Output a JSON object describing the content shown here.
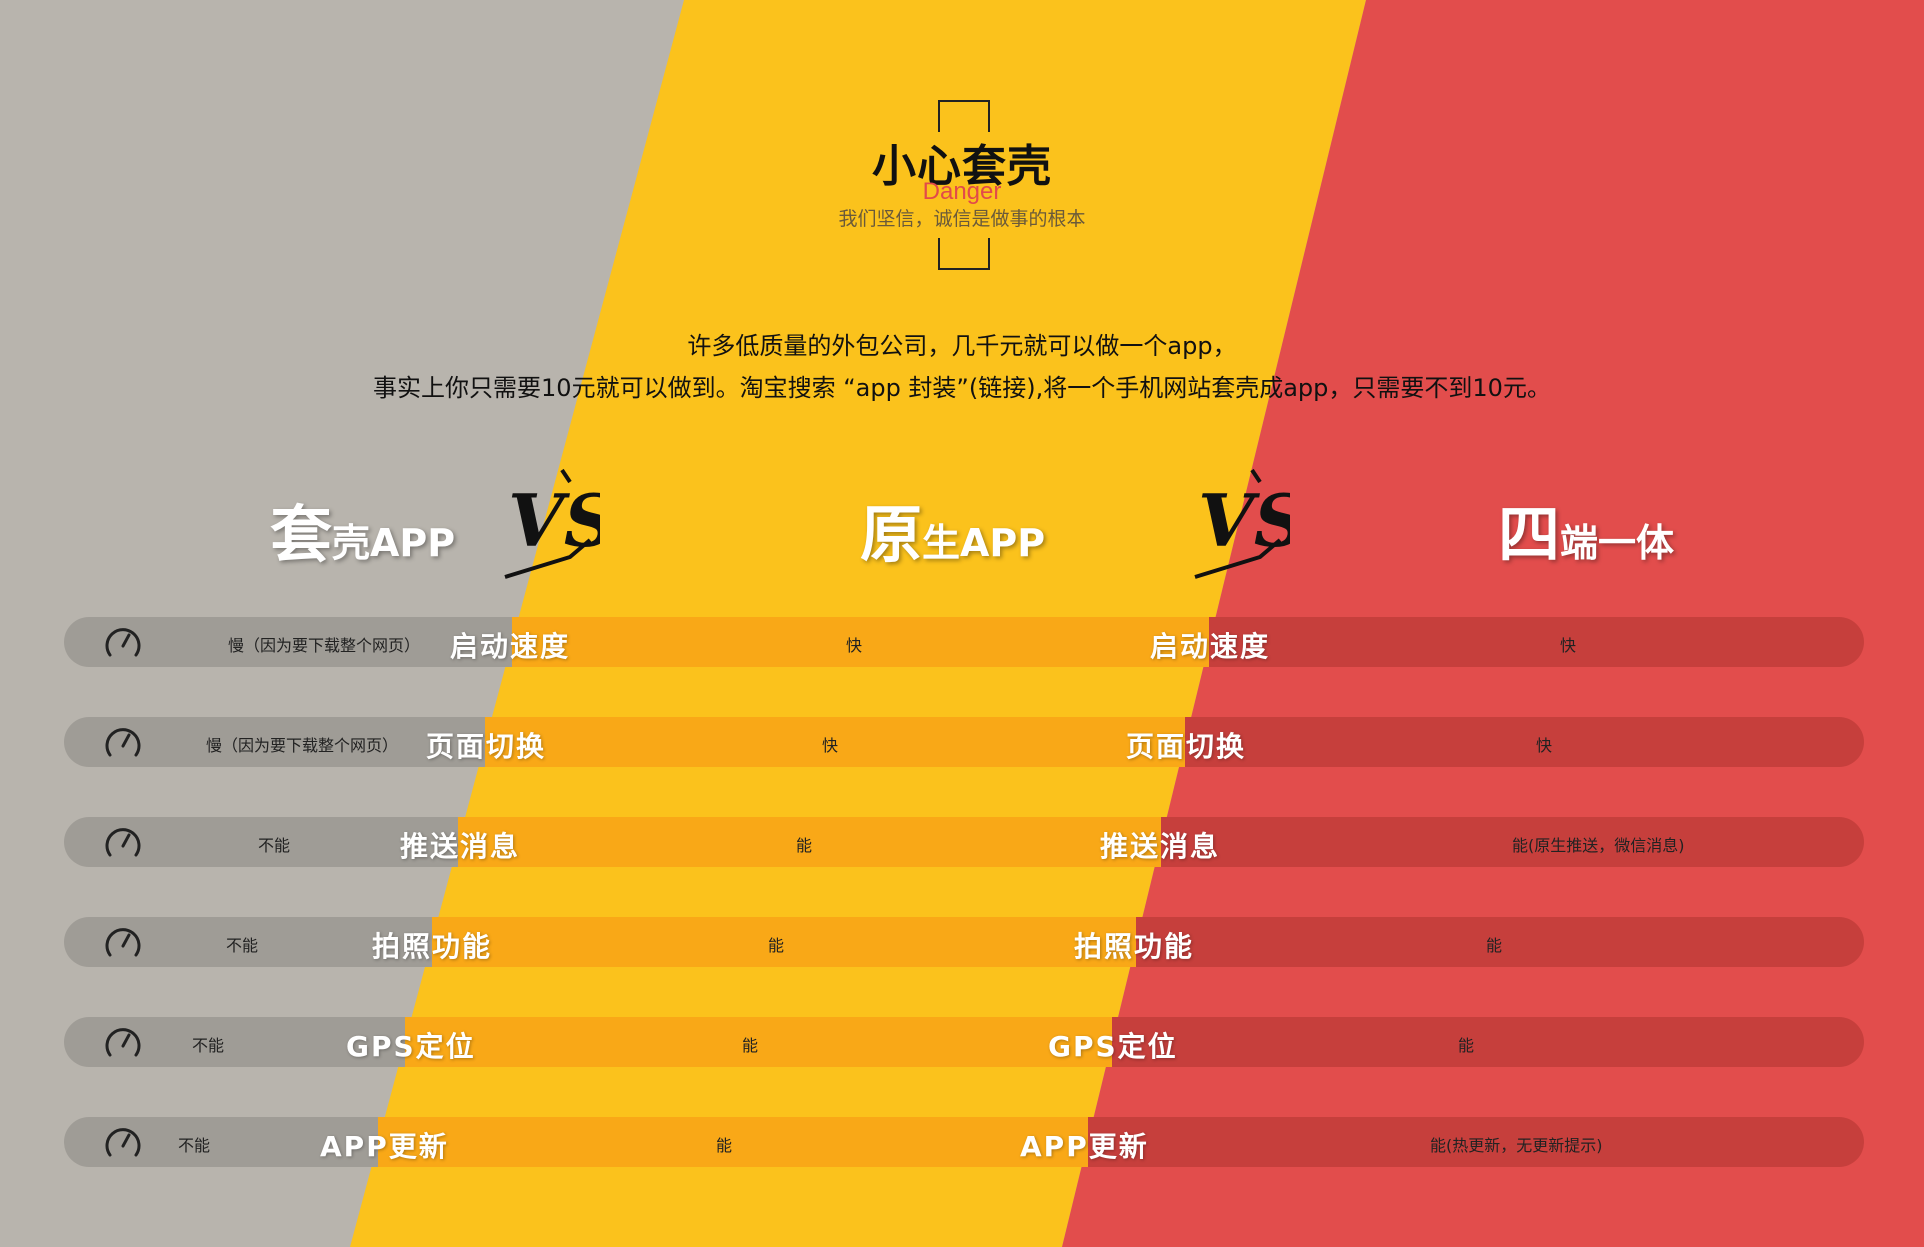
{
  "header": {
    "title": "小心套壳",
    "danger": "Danger",
    "motto": "我们坚信，诚信是做事的根本"
  },
  "intro": {
    "line1": "许多低质量的外包公司，几千元就可以做一个app，",
    "line2": "事实上你只需要10元就可以做到。淘宝搜索 “app 封装”(链接),将一个手机网站套壳成app，只需要不到10元。"
  },
  "columns": [
    {
      "big": "套",
      "small": "壳APP"
    },
    {
      "big": "原",
      "small": "生APP"
    },
    {
      "big": "四",
      "small": "端一体"
    }
  ],
  "vs_label": "VS",
  "colors": {
    "gray": "#b8b4ad",
    "yellow": "#fbc21c",
    "red": "#e24d4c",
    "row_gray": "#9f9c96",
    "row_yellow": "#f9a817",
    "row_red": "#c63f3c"
  },
  "rows": [
    {
      "label": "启动速度",
      "shell": "慢（因为要下载整个网页）",
      "native": "快",
      "multi": "快"
    },
    {
      "label": "页面切换",
      "shell": "慢（因为要下载整个网页）",
      "native": "快",
      "multi": "快"
    },
    {
      "label": "推送消息",
      "shell": "不能",
      "native": "能",
      "multi": "能(原生推送，微信消息)"
    },
    {
      "label": "拍照功能",
      "shell": "不能",
      "native": "能",
      "multi": "能"
    },
    {
      "label": "GPS定位",
      "shell": "不能",
      "native": "能",
      "multi": "能"
    },
    {
      "label": "APP更新",
      "shell": "不能",
      "native": "能",
      "multi": "能(热更新，无更新提示)"
    }
  ]
}
